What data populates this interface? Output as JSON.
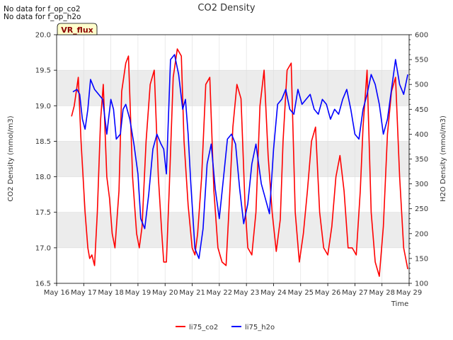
{
  "notes": [
    "No data for f_op_co2",
    "No data for f_op_h2o"
  ],
  "badge": "VR_flux",
  "colors": {
    "co2": "#ff0000",
    "h2o": "#0000ff",
    "band": "#ececec",
    "badge_bg": "#ffffcc"
  },
  "chart_data": {
    "type": "line",
    "title": "CO2 Density",
    "xlabel": "Time",
    "ylabel_left": "CO2 Density (mmol/m3)",
    "ylabel_right": "H2O Density (mmol/m3)",
    "xlim": [
      16,
      29
    ],
    "ylim_left": [
      16.5,
      20.0
    ],
    "ylim_right": [
      100,
      600
    ],
    "x_ticks": [
      16,
      17,
      18,
      19,
      20,
      21,
      22,
      23,
      24,
      25,
      26,
      27,
      28,
      29
    ],
    "x_tick_labels": [
      "May 16",
      "May 17",
      "May 18",
      "May 19",
      "May 20",
      "May 21",
      "May 22",
      "May 23",
      "May 24",
      "May 25",
      "May 26",
      "May 27",
      "May 28",
      "May 29"
    ],
    "y_left_ticks": [
      "16.5",
      "17.0",
      "17.5",
      "18.0",
      "18.5",
      "19.0",
      "19.5",
      "20.0"
    ],
    "y_right_ticks": [
      "100",
      "150",
      "200",
      "250",
      "300",
      "350",
      "400",
      "450",
      "500",
      "550",
      "600"
    ],
    "legend_position": "bottom-center",
    "series": [
      {
        "name": "li75_co2",
        "axis": "left",
        "x": [
          16.55,
          16.65,
          16.8,
          16.9,
          17.05,
          17.15,
          17.22,
          17.3,
          17.4,
          17.5,
          17.62,
          17.72,
          17.85,
          17.95,
          18.05,
          18.15,
          18.3,
          18.4,
          18.55,
          18.65,
          18.8,
          18.95,
          19.05,
          19.15,
          19.3,
          19.45,
          19.6,
          19.75,
          19.88,
          19.95,
          20.05,
          20.15,
          20.3,
          20.45,
          20.6,
          20.7,
          20.85,
          21.0,
          21.1,
          21.2,
          21.35,
          21.5,
          21.65,
          21.8,
          21.95,
          22.1,
          22.25,
          22.35,
          22.5,
          22.65,
          22.8,
          22.95,
          23.05,
          23.2,
          23.35,
          23.5,
          23.65,
          23.8,
          23.95,
          24.1,
          24.25,
          24.35,
          24.5,
          24.65,
          24.8,
          24.95,
          25.1,
          25.25,
          25.4,
          25.55,
          25.7,
          25.85,
          26.0,
          26.15,
          26.3,
          26.45,
          26.6,
          26.75,
          26.9,
          27.05,
          27.2,
          27.3,
          27.45,
          27.6,
          27.75,
          27.9,
          28.05,
          28.2,
          28.35,
          28.5,
          28.65,
          28.8,
          28.95
        ],
        "y": [
          18.85,
          19.0,
          19.4,
          18.5,
          17.5,
          17.0,
          16.85,
          16.9,
          16.75,
          17.5,
          18.8,
          19.3,
          18.0,
          17.7,
          17.2,
          17.0,
          17.8,
          19.2,
          19.6,
          19.7,
          18.0,
          17.2,
          17.0,
          17.3,
          18.5,
          19.3,
          19.5,
          18.0,
          17.2,
          16.8,
          16.8,
          17.8,
          19.4,
          19.8,
          19.7,
          18.5,
          17.6,
          17.0,
          16.9,
          17.2,
          18.0,
          19.3,
          19.4,
          17.8,
          17.0,
          16.8,
          16.75,
          17.5,
          18.7,
          19.3,
          19.1,
          17.6,
          17.0,
          16.9,
          17.5,
          19.0,
          19.5,
          18.3,
          17.5,
          16.95,
          17.4,
          18.5,
          19.5,
          19.6,
          17.5,
          16.8,
          17.2,
          17.8,
          18.5,
          18.7,
          17.5,
          17.0,
          16.9,
          17.3,
          18.0,
          18.3,
          17.8,
          17.0,
          17.0,
          16.9,
          17.8,
          18.7,
          19.5,
          17.5,
          16.8,
          16.6,
          17.3,
          18.6,
          19.2,
          19.4,
          18.0,
          17.0,
          16.7
        ]
      },
      {
        "name": "li75_h2o",
        "axis": "right",
        "x": [
          16.6,
          16.75,
          16.85,
          16.95,
          17.05,
          17.15,
          17.25,
          17.4,
          17.55,
          17.7,
          17.85,
          18.0,
          18.1,
          18.2,
          18.35,
          18.45,
          18.55,
          18.7,
          18.85,
          19.0,
          19.1,
          19.25,
          19.4,
          19.55,
          19.7,
          19.85,
          19.95,
          20.05,
          20.2,
          20.35,
          20.5,
          20.65,
          20.75,
          20.85,
          20.95,
          21.1,
          21.25,
          21.4,
          21.55,
          21.7,
          21.85,
          22.0,
          22.15,
          22.3,
          22.45,
          22.6,
          22.75,
          22.9,
          23.05,
          23.2,
          23.35,
          23.55,
          23.7,
          23.85,
          24.0,
          24.15,
          24.3,
          24.45,
          24.6,
          24.75,
          24.9,
          25.05,
          25.2,
          25.35,
          25.5,
          25.65,
          25.8,
          25.95,
          26.1,
          26.25,
          26.4,
          26.55,
          26.7,
          26.85,
          27.0,
          27.15,
          27.3,
          27.45,
          27.6,
          27.75,
          27.9,
          28.05,
          28.2,
          28.35,
          28.5,
          28.65,
          28.8,
          28.95
        ],
        "y": [
          485,
          490,
          480,
          430,
          410,
          450,
          510,
          490,
          480,
          470,
          400,
          470,
          450,
          390,
          400,
          450,
          460,
          430,
          380,
          320,
          230,
          210,
          280,
          370,
          400,
          380,
          370,
          320,
          550,
          560,
          520,
          450,
          470,
          400,
          300,
          170,
          150,
          210,
          340,
          380,
          290,
          230,
          310,
          390,
          400,
          380,
          290,
          220,
          260,
          340,
          380,
          300,
          270,
          240,
          370,
          460,
          470,
          490,
          450,
          440,
          490,
          460,
          470,
          480,
          450,
          440,
          470,
          460,
          430,
          450,
          440,
          470,
          490,
          450,
          400,
          390,
          450,
          480,
          520,
          500,
          460,
          400,
          430,
          490,
          550,
          500,
          480,
          520
        ]
      }
    ]
  }
}
